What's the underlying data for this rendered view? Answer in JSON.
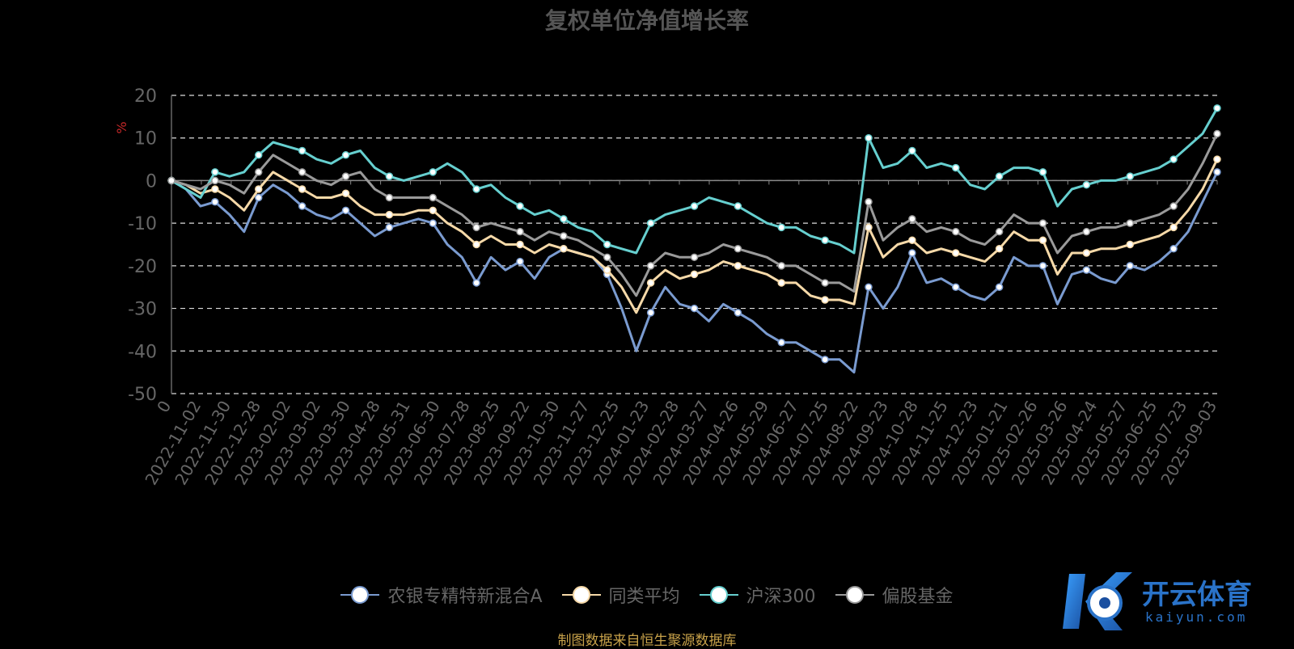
{
  "chart_data": {
    "type": "line",
    "title": "复权单位净值增长率",
    "ylabel": "%",
    "ylim": [
      -50,
      20
    ],
    "yticks": [
      20,
      10,
      0,
      -10,
      -20,
      -30,
      -40,
      -50
    ],
    "grid": true,
    "legend_position": "bottom",
    "x_tick_labels": [
      "0",
      "2022-11-02",
      "2022-11-30",
      "2022-12-28",
      "2023-02-02",
      "2023-03-02",
      "2023-03-30",
      "2023-04-28",
      "2023-05-31",
      "2023-06-30",
      "2023-07-28",
      "2023-08-25",
      "2023-09-22",
      "2023-10-30",
      "2023-11-27",
      "2023-12-25",
      "2024-01-23",
      "2024-02-28",
      "2024-03-27",
      "2024-04-26",
      "2024-05-29",
      "2024-06-27",
      "2024-07-25",
      "2024-08-22",
      "2024-09-23",
      "2024-10-28",
      "2024-11-25",
      "2024-12-23",
      "2025-01-21",
      "2025-02-26",
      "2025-03-26",
      "2025-04-24",
      "2025-05-27",
      "2025-06-25",
      "2025-07-23",
      "2025-09-03"
    ],
    "x": [
      "2022-10-31",
      "2022-11-02",
      "2022-11-16",
      "2022-11-30",
      "2022-12-14",
      "2022-12-28",
      "2023-01-12",
      "2023-02-02",
      "2023-02-16",
      "2023-03-02",
      "2023-03-16",
      "2023-03-30",
      "2023-04-14",
      "2023-04-28",
      "2023-05-15",
      "2023-05-31",
      "2023-06-15",
      "2023-06-30",
      "2023-07-14",
      "2023-07-28",
      "2023-08-11",
      "2023-08-25",
      "2023-09-08",
      "2023-09-22",
      "2023-10-16",
      "2023-10-30",
      "2023-11-13",
      "2023-11-27",
      "2023-12-11",
      "2023-12-25",
      "2024-01-09",
      "2024-01-23",
      "2024-02-06",
      "2024-02-28",
      "2024-03-13",
      "2024-03-27",
      "2024-04-12",
      "2024-04-26",
      "2024-05-14",
      "2024-05-29",
      "2024-06-13",
      "2024-06-27",
      "2024-07-11",
      "2024-07-25",
      "2024-08-08",
      "2024-08-22",
      "2024-09-05",
      "2024-09-23",
      "2024-09-30",
      "2024-10-14",
      "2024-10-28",
      "2024-11-11",
      "2024-11-25",
      "2024-12-09",
      "2024-12-23",
      "2025-01-07",
      "2025-01-21",
      "2025-02-12",
      "2025-02-26",
      "2025-03-12",
      "2025-03-26",
      "2025-04-03",
      "2025-04-10",
      "2025-04-24",
      "2025-05-12",
      "2025-05-27",
      "2025-06-11",
      "2025-06-25",
      "2025-07-09",
      "2025-07-23",
      "2025-08-06",
      "2025-08-20",
      "2025-09-03"
    ],
    "series": [
      {
        "name": "农银专精特新混合A",
        "color": "#7a9bd0",
        "values": [
          0,
          -2,
          -6,
          -5,
          -8,
          -12,
          -4,
          -1,
          -3,
          -6,
          -8,
          -9,
          -7,
          -10,
          -13,
          -11,
          -10,
          -9,
          -10,
          -15,
          -18,
          -24,
          -18,
          -21,
          -19,
          -23,
          -18,
          -16,
          -17,
          -18,
          -22,
          -30,
          -40,
          -31,
          -25,
          -29,
          -30,
          -33,
          -29,
          -31,
          -33,
          -36,
          -38,
          -38,
          -40,
          -42,
          -42,
          -45,
          -25,
          -30,
          -25,
          -17,
          -24,
          -23,
          -25,
          -27,
          -28,
          -25,
          -18,
          -20,
          -20,
          -29,
          -22,
          -21,
          -23,
          -24,
          -20,
          -21,
          -19,
          -16,
          -12,
          -5,
          2
        ]
      },
      {
        "name": "同类平均",
        "color": "#f6d9a8",
        "values": [
          0,
          -1,
          -3,
          -2,
          -4,
          -7,
          -2,
          2,
          0,
          -2,
          -4,
          -4,
          -3,
          -6,
          -8,
          -8,
          -8,
          -7,
          -7,
          -10,
          -12,
          -15,
          -13,
          -15,
          -15,
          -17,
          -15,
          -16,
          -17,
          -18,
          -21,
          -25,
          -31,
          -24,
          -21,
          -23,
          -22,
          -21,
          -19,
          -20,
          -21,
          -22,
          -24,
          -24,
          -27,
          -28,
          -28,
          -29,
          -11,
          -18,
          -15,
          -14,
          -17,
          -16,
          -17,
          -18,
          -19,
          -16,
          -12,
          -14,
          -14,
          -22,
          -17,
          -17,
          -16,
          -16,
          -15,
          -14,
          -13,
          -11,
          -7,
          -2,
          5
        ]
      },
      {
        "name": "沪深300",
        "color": "#66cfcf",
        "values": [
          0,
          -2,
          -4,
          2,
          1,
          2,
          6,
          9,
          8,
          7,
          5,
          4,
          6,
          7,
          3,
          1,
          0,
          1,
          2,
          4,
          2,
          -2,
          -1,
          -4,
          -6,
          -8,
          -7,
          -9,
          -11,
          -12,
          -15,
          -16,
          -17,
          -10,
          -8,
          -7,
          -6,
          -4,
          -5,
          -6,
          -8,
          -10,
          -11,
          -11,
          -13,
          -14,
          -15,
          -17,
          10,
          3,
          4,
          7,
          3,
          4,
          3,
          -1,
          -2,
          1,
          3,
          3,
          2,
          -6,
          -2,
          -1,
          0,
          0,
          1,
          2,
          3,
          5,
          8,
          11,
          17
        ]
      },
      {
        "name": "偏股基金",
        "color": "#9a9a9a",
        "values": [
          0,
          -1,
          -2,
          0,
          -1,
          -3,
          2,
          6,
          4,
          2,
          0,
          -1,
          1,
          2,
          -2,
          -4,
          -4,
          -4,
          -4,
          -6,
          -8,
          -11,
          -10,
          -11,
          -12,
          -14,
          -12,
          -13,
          -14,
          -16,
          -18,
          -22,
          -27,
          -20,
          -17,
          -18,
          -18,
          -17,
          -15,
          -16,
          -17,
          -18,
          -20,
          -20,
          -22,
          -24,
          -24,
          -26,
          -5,
          -14,
          -11,
          -9,
          -12,
          -11,
          -12,
          -14,
          -15,
          -12,
          -8,
          -10,
          -10,
          -17,
          -13,
          -12,
          -11,
          -11,
          -10,
          -9,
          -8,
          -6,
          -2,
          4,
          11
        ]
      }
    ]
  },
  "source_note": "制图数据来自恒生聚源数据库",
  "watermark": {
    "cn": "开云体育",
    "en": "kaiyun.com"
  }
}
